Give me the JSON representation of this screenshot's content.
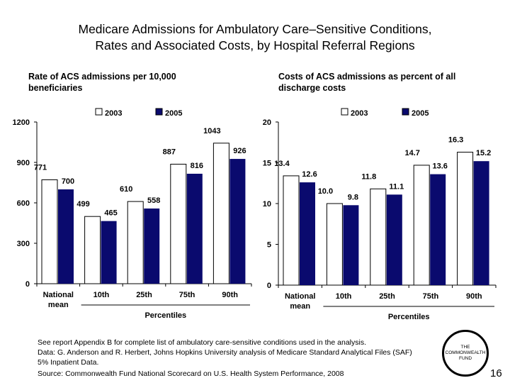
{
  "title_line1": "Medicare Admissions for Ambulatory Care–Sensitive Conditions,",
  "title_line2": "Rates and Associated Costs, by Hospital Referral Regions",
  "chart_data": [
    {
      "type": "bar",
      "subtitle": "Rate of ACS admissions per 10,000 beneficiaries",
      "categories": [
        "National mean",
        "10th",
        "25th",
        "75th",
        "90th"
      ],
      "group_label": "Percentiles",
      "ylim": [
        0,
        1200
      ],
      "yticks": [
        0,
        300,
        600,
        900,
        1200
      ],
      "series": [
        {
          "name": "2003",
          "color": "#ffffff",
          "values": [
            771,
            499,
            610,
            887,
            1043
          ],
          "labels": [
            "771",
            "499",
            "610",
            "887",
            "1043"
          ]
        },
        {
          "name": "2005",
          "color": "#0a0a6e",
          "values": [
            700,
            465,
            558,
            816,
            926
          ],
          "labels": [
            "700",
            "465",
            "558",
            "816",
            "926"
          ]
        }
      ],
      "legend": "top",
      "grid": false
    },
    {
      "type": "bar",
      "subtitle": "Costs of ACS admissions as percent of all discharge costs",
      "categories": [
        "National mean",
        "10th",
        "25th",
        "75th",
        "90th"
      ],
      "group_label": "Percentiles",
      "ylim": [
        0,
        20
      ],
      "yticks": [
        0,
        5,
        10,
        15,
        20
      ],
      "series": [
        {
          "name": "2003",
          "color": "#ffffff",
          "values": [
            13.4,
            10.0,
            11.8,
            14.7,
            16.3
          ],
          "labels": [
            "13.4",
            "10.0",
            "11.8",
            "14.7",
            "16.3"
          ]
        },
        {
          "name": "2005",
          "color": "#0a0a6e",
          "values": [
            12.6,
            9.8,
            11.1,
            13.6,
            15.2
          ],
          "labels": [
            "12.6",
            "9.8",
            "11.1",
            "13.6",
            "15.2"
          ]
        }
      ],
      "legend": "top",
      "grid": false
    }
  ],
  "notes": [
    "See report Appendix B for complete list of ambulatory care-sensitive conditions used in the analysis.",
    "Data: G. Anderson and R. Herbert, Johns Hopkins University analysis of Medicare Standard Analytical Files (SAF)",
    "5% Inpatient Data."
  ],
  "source": "Source: Commonwealth Fund National Scorecard on U.S. Health System Performance, 2008",
  "logo_text": "THE COMMONWEALTH FUND",
  "page_number": "16"
}
